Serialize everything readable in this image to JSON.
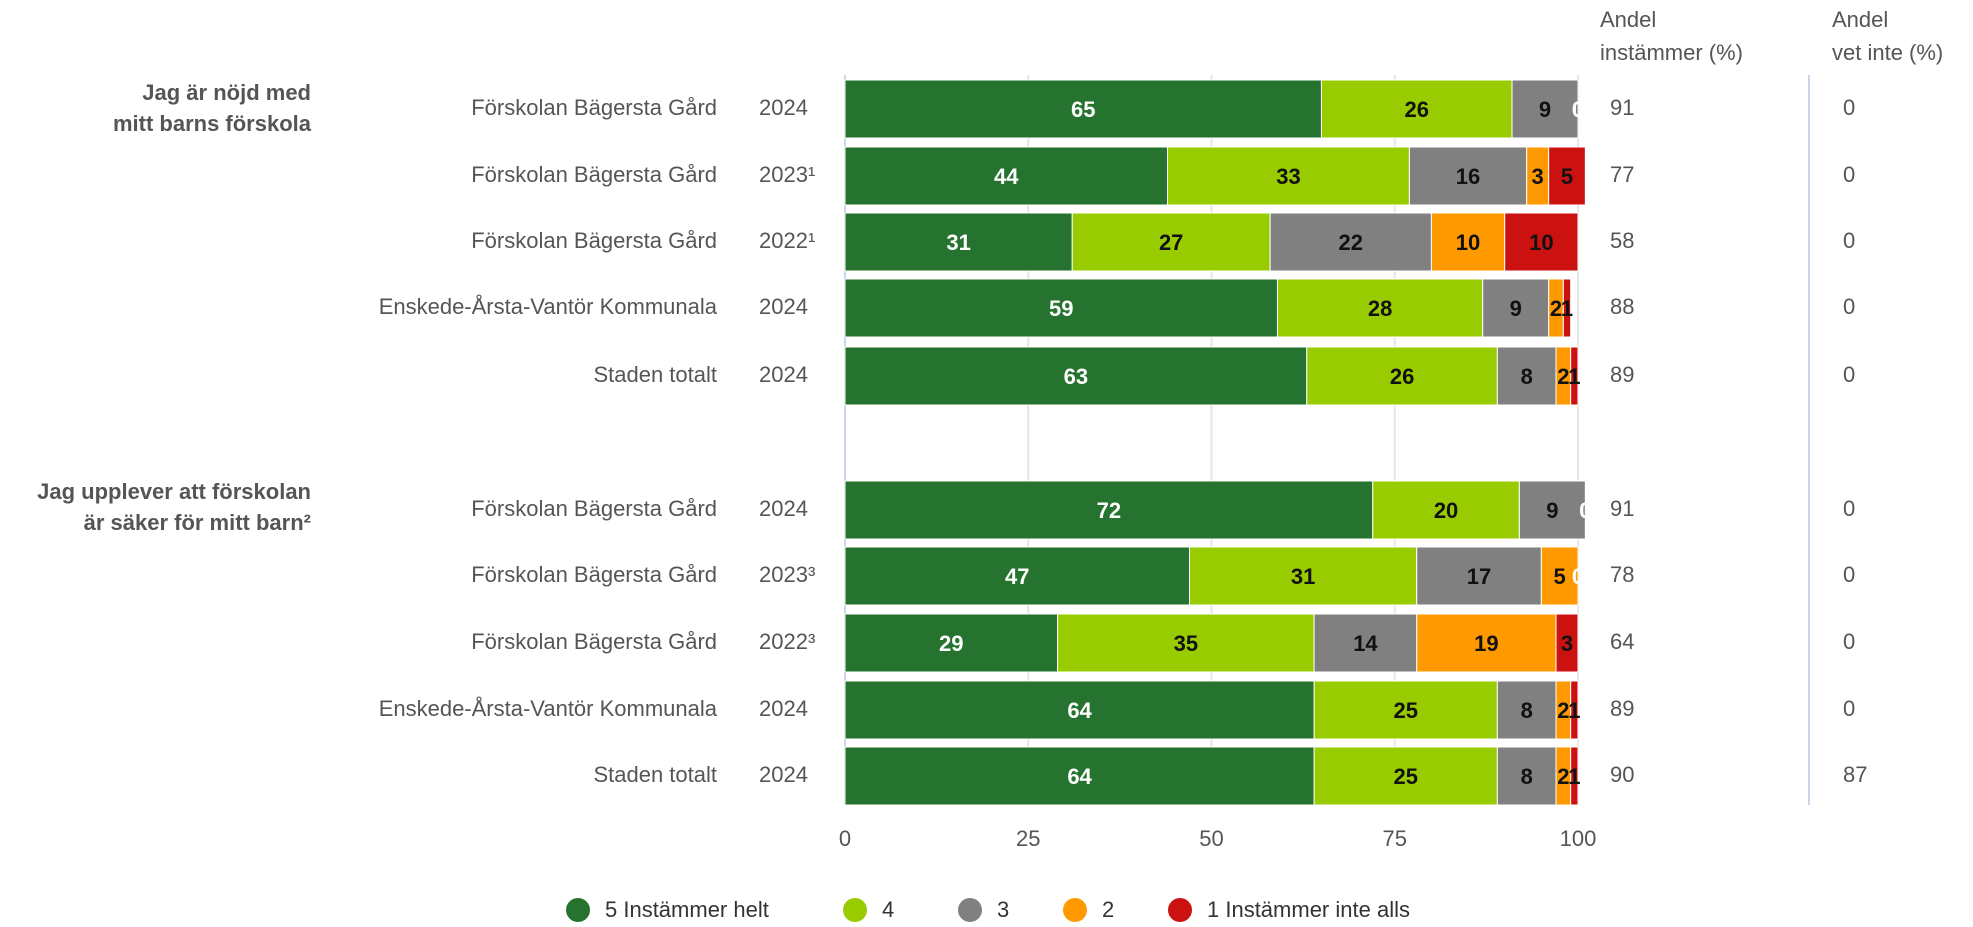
{
  "chart_data": {
    "type": "stacked-bar-horizontal",
    "group_labels": [
      [
        "Jag är nöjd med",
        "mitt barns förskola"
      ],
      [
        "Jag upplever att förskolan",
        "är säker för mitt barn²"
      ]
    ],
    "categories": [
      "Förskolan Bägersta Gård",
      "Förskolan Bägersta Gård",
      "Förskolan Bägersta Gård",
      "Enskede-Årsta-Vantör Kommunala",
      "Staden totalt",
      "Förskolan Bägersta Gård",
      "Förskolan Bägersta Gård",
      "Förskolan Bägersta Gård",
      "Enskede-Årsta-Vantör Kommunala",
      "Staden totalt"
    ],
    "years": [
      "2024",
      "2023¹",
      "2022¹",
      "2024",
      "2024",
      "2024",
      "2023³",
      "2022³",
      "2024",
      "2024"
    ],
    "series": [
      {
        "name": "5 Instämmer helt",
        "color": "#25732e",
        "values": [
          65,
          44,
          31,
          59,
          63,
          72,
          47,
          29,
          64,
          64
        ]
      },
      {
        "name": "4",
        "color": "#99cc00",
        "values": [
          26,
          33,
          27,
          28,
          26,
          20,
          31,
          35,
          25,
          25
        ]
      },
      {
        "name": "3",
        "color": "#808080",
        "values": [
          9,
          16,
          22,
          9,
          8,
          9,
          17,
          14,
          8,
          8
        ]
      },
      {
        "name": "2",
        "color": "#ff9900",
        "values": [
          0,
          3,
          10,
          2,
          2,
          0,
          5,
          19,
          2,
          2
        ]
      },
      {
        "name": "1 Instämmer inte alls",
        "color": "#cc1111",
        "values": [
          0,
          5,
          10,
          1,
          1,
          0,
          0,
          3,
          1,
          1
        ]
      }
    ],
    "columns": [
      {
        "header": [
          "Andel",
          "instämmer (%)"
        ],
        "values": [
          91,
          77,
          58,
          88,
          89,
          91,
          78,
          64,
          89,
          90
        ]
      },
      {
        "header": [
          "Andel",
          "vet inte (%)"
        ],
        "values": [
          0,
          0,
          0,
          0,
          0,
          0,
          0,
          0,
          0,
          87
        ]
      }
    ],
    "xlim": [
      0,
      100
    ],
    "xticks": [
      0,
      25,
      50,
      75,
      100
    ],
    "grid": true,
    "legend": "bottom"
  }
}
